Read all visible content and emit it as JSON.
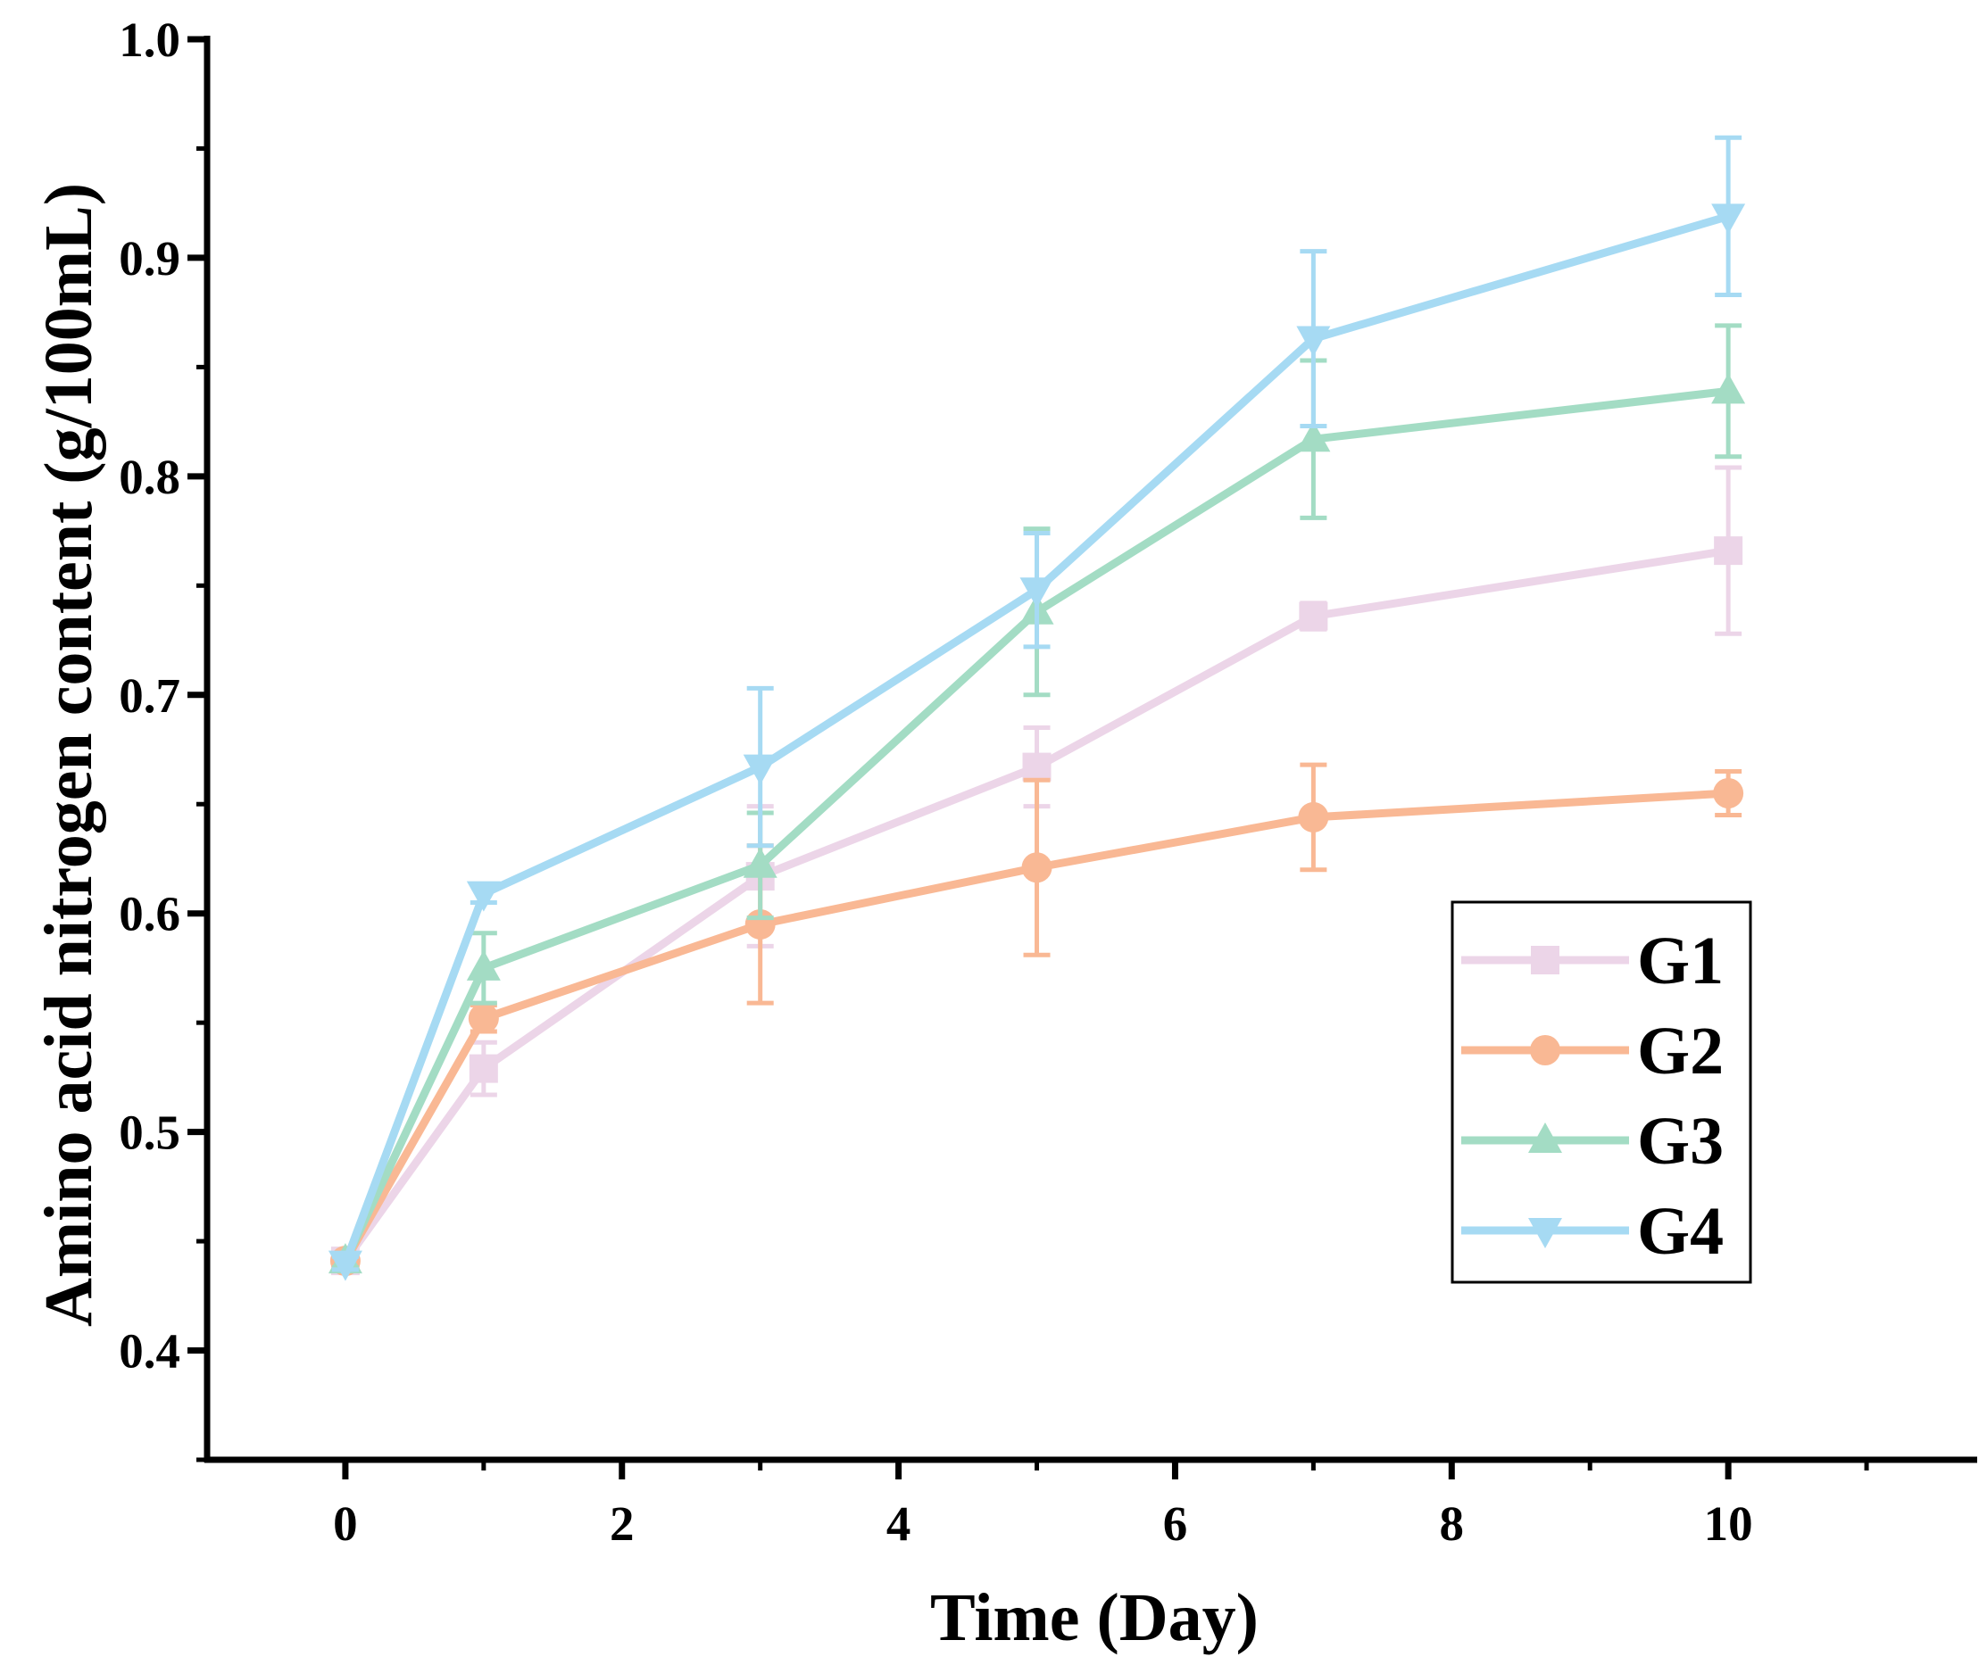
{
  "chart_data": {
    "type": "line",
    "title": "",
    "xlabel": "Time (Day)",
    "ylabel": "Amino acid nitrogen content (g/100mL)",
    "xlim": [
      -1,
      11.8
    ],
    "ylim": [
      0.35,
      1.0
    ],
    "xticks": [
      0,
      2,
      4,
      6,
      8,
      10
    ],
    "yticks": [
      0.4,
      0.5,
      0.6,
      0.7,
      0.8,
      0.9,
      1.0
    ],
    "xtick_labels": [
      "0",
      "2",
      "4",
      "6",
      "8",
      "10"
    ],
    "ytick_labels": [
      "0.4",
      "0.5",
      "0.6",
      "0.7",
      "0.8",
      "0.9",
      "1.0"
    ],
    "grid": false,
    "legend_position": "right",
    "x": [
      0,
      1,
      3,
      5,
      7,
      10
    ],
    "series": [
      {
        "name": "G1",
        "marker": "square",
        "color": "#ecd5e8",
        "values": [
          0.441,
          0.529,
          0.617,
          0.667,
          0.736,
          0.766
        ],
        "errors": [
          0.003,
          0.012,
          0.032,
          0.018,
          0.006,
          0.038
        ]
      },
      {
        "name": "G2",
        "marker": "circle",
        "color": "#f9b894",
        "values": [
          0.441,
          0.552,
          0.595,
          0.621,
          0.644,
          0.655
        ],
        "errors": [
          0.003,
          0.006,
          0.036,
          0.04,
          0.024,
          0.01
        ]
      },
      {
        "name": "G3",
        "marker": "triangle-up",
        "color": "#a3dcc4",
        "values": [
          0.441,
          0.575,
          0.622,
          0.738,
          0.817,
          0.839
        ],
        "errors": [
          0.003,
          0.016,
          0.024,
          0.038,
          0.036,
          0.03
        ]
      },
      {
        "name": "G4",
        "marker": "triangle-down",
        "color": "#a6daf3",
        "values": [
          0.44,
          0.609,
          0.667,
          0.748,
          0.863,
          0.919
        ],
        "errors": [
          0.003,
          0.004,
          0.036,
          0.026,
          0.04,
          0.036
        ]
      }
    ]
  }
}
